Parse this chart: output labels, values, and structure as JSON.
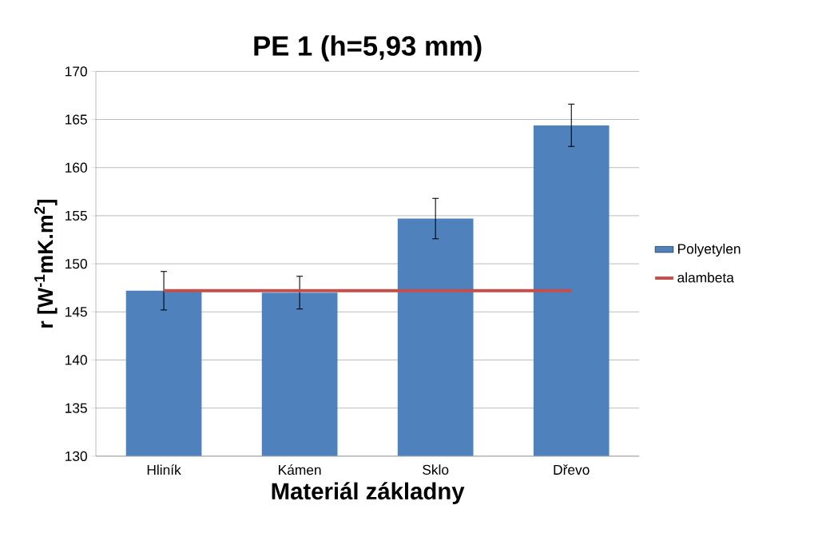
{
  "chart_data": {
    "type": "bar",
    "title": "PE 1 (h=5,93 mm)",
    "xlabel": "Materiál základny",
    "ylabel": "r  [W$^{-1}$mK.m$^{2}$]",
    "categories": [
      "Hliník",
      "Kámen",
      "Sklo",
      "Dřevo"
    ],
    "series": [
      {
        "name": "Polyetylen",
        "color": "#4f81bd",
        "values": [
          147.2,
          147.0,
          154.7,
          164.4
        ],
        "errors": [
          2.0,
          1.7,
          2.1,
          2.2
        ]
      },
      {
        "name": "alambeta",
        "type": "line",
        "color": "#c0504d",
        "values": [
          147.2,
          147.2,
          147.2,
          147.2
        ]
      }
    ],
    "ylim": [
      130,
      170
    ],
    "yticks": [
      130,
      135,
      140,
      145,
      150,
      155,
      160,
      165,
      170
    ],
    "grid": "y",
    "legend": "right",
    "marker": "none"
  }
}
